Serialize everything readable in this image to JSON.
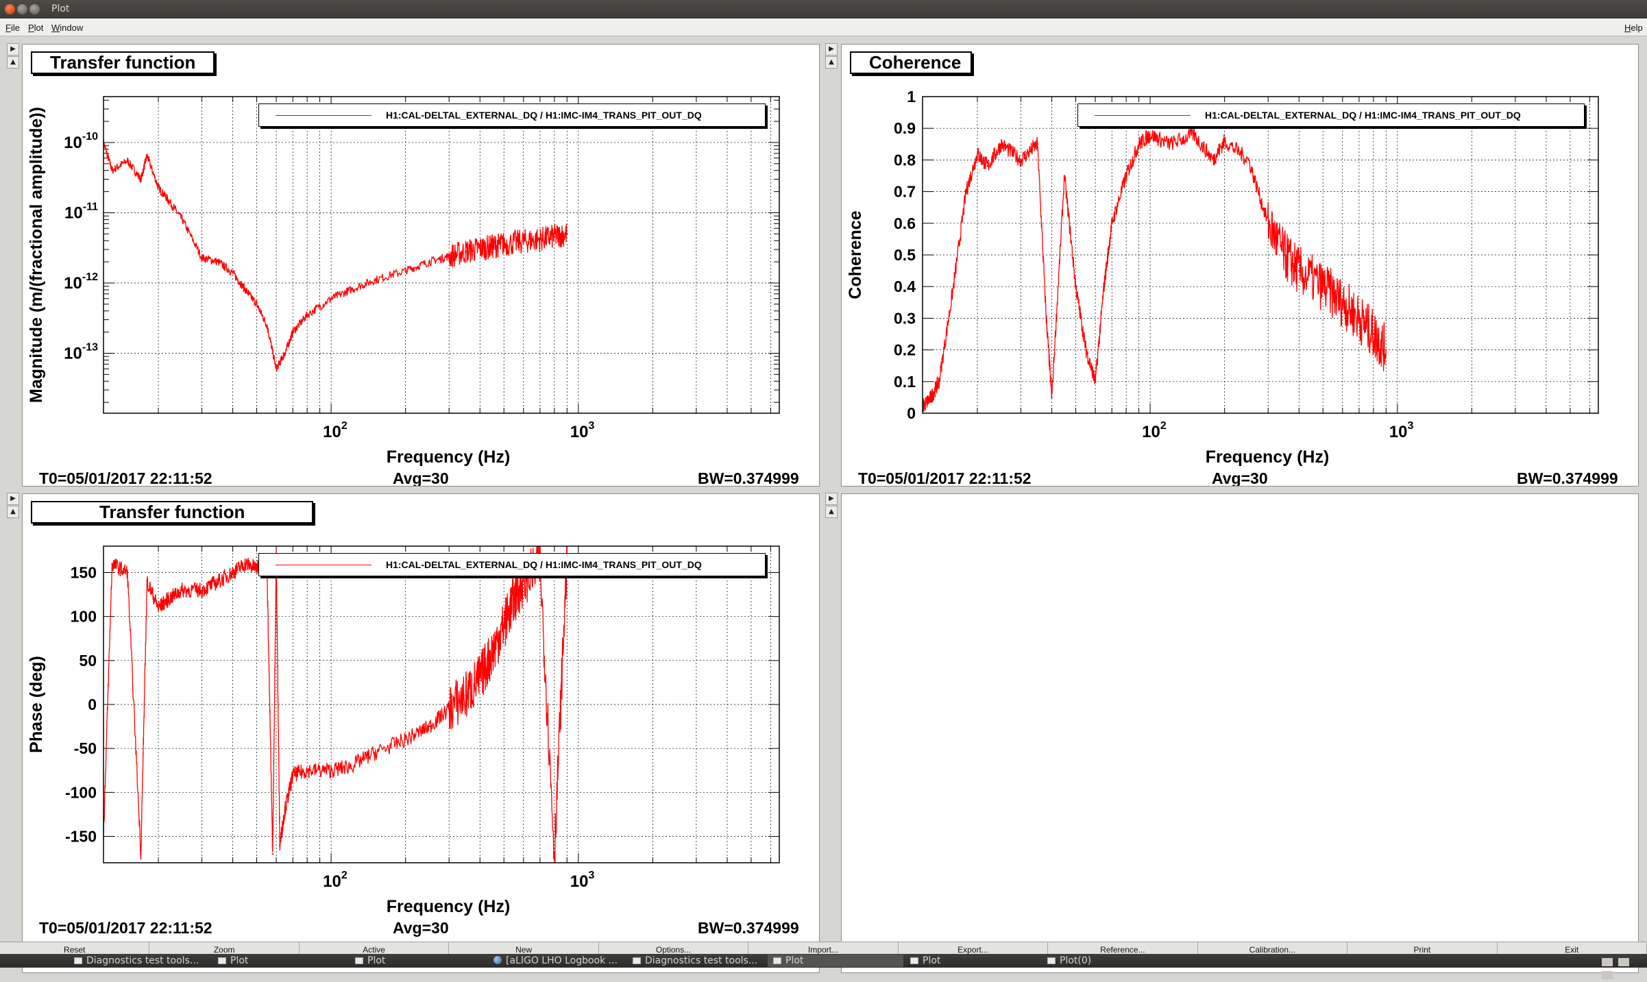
{
  "window": {
    "title": "Plot"
  },
  "menu": {
    "file": "File",
    "plot": "Plot",
    "window": "Window",
    "help": "Help"
  },
  "colors": {
    "trace": "#ff0000",
    "grid": "#000000",
    "background": "#ffffff",
    "titlebar": "#3c3b37"
  },
  "legend_label": "H1:CAL-DELTAL_EXTERNAL_DQ / H1:IMC-IM4_TRANS_PIT_OUT_DQ",
  "pads": {
    "magnitude": {
      "title": "Transfer function",
      "chart_data": {
        "type": "line",
        "xlabel": "Frequency (Hz)",
        "ylabel": "Magnitude (m/(fractional amplitude))",
        "xscale": "log",
        "yscale": "log",
        "xlim": [
          12,
          6500
        ],
        "ylim": [
          1.4e-14,
          4.5e-10
        ],
        "x_tick_labels": [
          {
            "base": "10",
            "exp": "2"
          },
          {
            "base": "10",
            "exp": "3"
          }
        ],
        "y_tick_labels": [
          {
            "base": "10",
            "exp": "-10"
          },
          {
            "base": "10",
            "exp": "-11"
          },
          {
            "base": "10",
            "exp": "-12"
          },
          {
            "base": "10",
            "exp": "-13"
          }
        ],
        "grid": true,
        "legend": "top-right",
        "series": [
          {
            "x": [
              12,
              13,
              15,
              17,
              18,
              20,
              22,
              25,
              30,
              35,
              40,
              45,
              50,
              55,
              60,
              65,
              70,
              80,
              100,
              120,
              150,
              200,
              250,
              300,
              350,
              400,
              450,
              500,
              600,
              700,
              800,
              900
            ],
            "y": [
              1e-10,
              4e-11,
              5.5e-11,
              3e-11,
              6.5e-11,
              2.3e-11,
              1.5e-11,
              8e-12,
              2.3e-12,
              2e-12,
              1.4e-12,
              8e-13,
              5e-13,
              2.5e-13,
              6e-14,
              1e-13,
              2e-13,
              3.5e-13,
              6e-13,
              8e-13,
              1.1e-12,
              1.5e-12,
              2e-12,
              2.4e-12,
              2.8e-12,
              3.1e-12,
              3.3e-12,
              3.6e-12,
              3.9e-12,
              4.2e-12,
              4.6e-12,
              5e-12
            ]
          }
        ]
      },
      "status": {
        "t0": "T0=05/01/2017 22:11:52",
        "avg": "Avg=30",
        "bw": "BW=0.374999"
      }
    },
    "coherence": {
      "title": "Coherence",
      "chart_data": {
        "type": "line",
        "xlabel": "Frequency (Hz)",
        "ylabel": "Coherence",
        "xscale": "log",
        "yscale": "linear",
        "xlim": [
          12,
          6500
        ],
        "ylim": [
          0,
          1
        ],
        "x_tick_labels": [
          {
            "base": "10",
            "exp": "2"
          },
          {
            "base": "10",
            "exp": "3"
          }
        ],
        "y_tick_labels": [
          "0",
          "0.1",
          "0.2",
          "0.3",
          "0.4",
          "0.5",
          "0.6",
          "0.7",
          "0.8",
          "0.9",
          "1"
        ],
        "grid": true,
        "legend": "top-right",
        "series": [
          {
            "x": [
              12,
              13,
              14,
              16,
              18,
              20,
              22,
              25,
              30,
              35,
              38,
              40,
              45,
              50,
              55,
              60,
              65,
              70,
              80,
              90,
              100,
              120,
              150,
              180,
              200,
              250,
              300,
              350,
              400,
              500,
              600,
              700,
              800,
              900
            ],
            "y": [
              0.02,
              0.05,
              0.1,
              0.4,
              0.7,
              0.82,
              0.78,
              0.85,
              0.8,
              0.85,
              0.3,
              0.05,
              0.75,
              0.4,
              0.2,
              0.1,
              0.4,
              0.6,
              0.75,
              0.85,
              0.88,
              0.85,
              0.88,
              0.8,
              0.86,
              0.8,
              0.6,
              0.5,
              0.45,
              0.4,
              0.35,
              0.3,
              0.25,
              0.2
            ]
          }
        ]
      },
      "status": {
        "t0": "T0=05/01/2017 22:11:52",
        "avg": "Avg=30",
        "bw": "BW=0.374999"
      }
    },
    "phase": {
      "title": "Transfer function",
      "chart_data": {
        "type": "line",
        "xlabel": "Frequency (Hz)",
        "ylabel": "Phase (deg)",
        "xscale": "log",
        "yscale": "linear",
        "xlim": [
          12,
          6500
        ],
        "ylim": [
          -180,
          180
        ],
        "x_tick_labels": [
          {
            "base": "10",
            "exp": "2"
          },
          {
            "base": "10",
            "exp": "3"
          }
        ],
        "y_tick_labels": [
          "150",
          "100",
          "50",
          "0",
          "-50",
          "-100",
          "-150"
        ],
        "grid": true,
        "legend": "top-right",
        "series": [
          {
            "x": [
              12,
              13,
              15,
              17,
              18,
              20,
              22,
              25,
              30,
              35,
              40,
              45,
              50,
              55,
              58,
              60,
              62,
              65,
              70,
              80,
              100,
              120,
              150,
              200,
              250,
              300,
              350,
              400,
              450,
              500,
              550,
              600,
              700,
              800,
              900
            ],
            "y": [
              -150,
              160,
              150,
              -170,
              140,
              110,
              120,
              130,
              130,
              140,
              150,
              160,
              155,
              160,
              -170,
              170,
              -160,
              -120,
              -80,
              -75,
              -75,
              -70,
              -55,
              -40,
              -25,
              -5,
              10,
              30,
              60,
              90,
              120,
              140,
              160,
              -170,
              170
            ]
          }
        ]
      },
      "status": {
        "t0": "T0=05/01/2017 22:11:52",
        "avg": "Avg=30",
        "bw": "BW=0.374999"
      }
    }
  },
  "toolbar": {
    "buttons": [
      "Reset",
      "Zoom",
      "Active",
      "New",
      "Options...",
      "Import...",
      "Export...",
      "Reference...",
      "Calibration...",
      "Print",
      "Exit"
    ]
  },
  "taskbar": {
    "items": [
      {
        "label": "Diagnostics test tools...",
        "icon": "window-icon"
      },
      {
        "label": "Plot",
        "icon": "window-icon"
      },
      {
        "label": "Plot",
        "icon": "window-icon"
      },
      {
        "label": "[aLIGO LHO Logbook ...",
        "icon": "globe-icon"
      },
      {
        "label": "Diagnostics test tools...",
        "icon": "window-icon"
      },
      {
        "label": "Plot",
        "icon": "window-icon"
      },
      {
        "label": "Plot",
        "icon": "window-icon"
      },
      {
        "label": "Plot(0)",
        "icon": "window-icon"
      }
    ]
  }
}
